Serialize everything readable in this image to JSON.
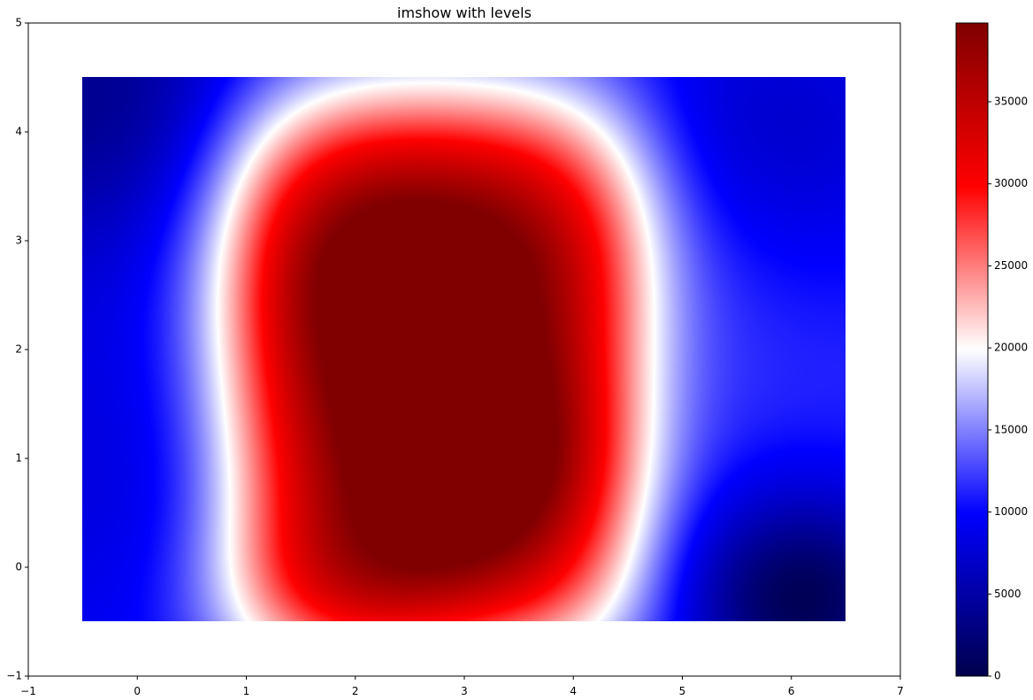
{
  "chart_data": {
    "type": "heatmap",
    "title": "imshow with levels",
    "xlim": [
      -1,
      7
    ],
    "ylim": [
      -1,
      5
    ],
    "extent": [
      -0.5,
      6.5,
      -0.5,
      4.5
    ],
    "xticks": [
      "−1",
      "0",
      "1",
      "2",
      "3",
      "4",
      "5",
      "6",
      "7"
    ],
    "yticks": [
      "−1",
      "0",
      "1",
      "2",
      "3",
      "4",
      "5"
    ],
    "colormap": "seismic",
    "colors": [
      "#00004c",
      "#0000ff",
      "#ffffff",
      "#ff0000",
      "#800000"
    ],
    "vmin": 0,
    "vmax": 39800,
    "colorbar_ticks": [
      "0",
      "5000",
      "10000",
      "15000",
      "20000",
      "25000",
      "30000",
      "35000"
    ],
    "peaks": [
      {
        "x": 3.1,
        "y": 0.95,
        "value": 39500
      },
      {
        "x": 6.1,
        "y": -0.3,
        "value": 200
      },
      {
        "x": -0.4,
        "y": 4.4,
        "value": 2500
      }
    ]
  }
}
